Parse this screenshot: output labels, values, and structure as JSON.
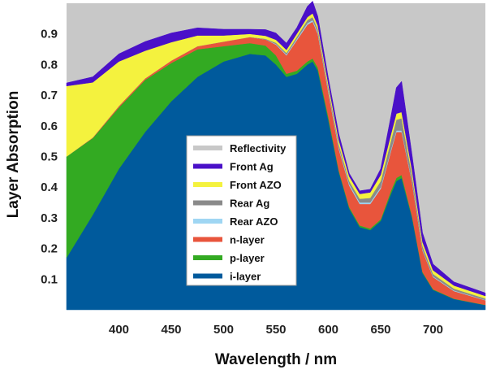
{
  "chart_data": {
    "type": "area",
    "stacked": true,
    "title": "",
    "xlabel": "Wavelength / nm",
    "ylabel": "Layer Absorption",
    "xlim": [
      350,
      750
    ],
    "ylim": [
      0,
      1
    ],
    "xticks": [
      400,
      450,
      500,
      550,
      600,
      650,
      700
    ],
    "yticks": [
      0.1,
      0.2,
      0.3,
      0.4,
      0.5,
      0.6,
      0.7,
      0.8,
      0.9
    ],
    "grid": false,
    "legend_position": "center",
    "background_color": "#c8c8c8",
    "x": [
      350,
      375,
      400,
      425,
      450,
      475,
      500,
      525,
      540,
      550,
      560,
      570,
      580,
      585,
      590,
      600,
      610,
      620,
      630,
      640,
      650,
      660,
      665,
      670,
      680,
      690,
      700,
      720,
      750
    ],
    "series": [
      {
        "name": "i-layer",
        "color": "#005a9c",
        "values": [
          0.17,
          0.31,
          0.46,
          0.58,
          0.68,
          0.76,
          0.81,
          0.835,
          0.83,
          0.8,
          0.76,
          0.77,
          0.8,
          0.81,
          0.78,
          0.62,
          0.45,
          0.33,
          0.27,
          0.26,
          0.29,
          0.38,
          0.42,
          0.43,
          0.3,
          0.12,
          0.065,
          0.035,
          0.015
        ]
      },
      {
        "name": "p-layer",
        "color": "#33aa22",
        "values": [
          0.33,
          0.25,
          0.2,
          0.17,
          0.125,
          0.09,
          0.05,
          0.035,
          0.032,
          0.03,
          0.01,
          0.01,
          0.01,
          0.01,
          0.01,
          0.01,
          0.005,
          0.005,
          0.005,
          0.005,
          0.005,
          0.01,
          0.01,
          0.01,
          0.005,
          0.003,
          0.002,
          0.001,
          0.001
        ]
      },
      {
        "name": "n-layer",
        "color": "#e8553c",
        "values": [
          0.0,
          0.002,
          0.005,
          0.005,
          0.008,
          0.01,
          0.015,
          0.02,
          0.02,
          0.035,
          0.06,
          0.1,
          0.12,
          0.12,
          0.11,
          0.08,
          0.07,
          0.07,
          0.07,
          0.08,
          0.1,
          0.13,
          0.15,
          0.14,
          0.11,
          0.07,
          0.04,
          0.025,
          0.015
        ]
      },
      {
        "name": "Rear AZO",
        "color": "#9fd6f3",
        "values": [
          0.0,
          0.0,
          0.0,
          0.0,
          0.0,
          0.0,
          0.0,
          0.0,
          0.0,
          0.002,
          0.003,
          0.004,
          0.005,
          0.005,
          0.005,
          0.005,
          0.005,
          0.005,
          0.005,
          0.005,
          0.005,
          0.005,
          0.005,
          0.005,
          0.004,
          0.003,
          0.002,
          0.002,
          0.001
        ]
      },
      {
        "name": "Rear Ag",
        "color": "#8a8a8a",
        "values": [
          0.0,
          0.0,
          0.0,
          0.0,
          0.0,
          0.0,
          0.0,
          0.0,
          0.002,
          0.004,
          0.005,
          0.007,
          0.01,
          0.01,
          0.01,
          0.01,
          0.01,
          0.01,
          0.012,
          0.015,
          0.02,
          0.03,
          0.035,
          0.04,
          0.02,
          0.012,
          0.008,
          0.006,
          0.005
        ]
      },
      {
        "name": "Front AZO",
        "color": "#f4f23e",
        "values": [
          0.23,
          0.18,
          0.145,
          0.09,
          0.06,
          0.035,
          0.02,
          0.01,
          0.01,
          0.01,
          0.01,
          0.01,
          0.01,
          0.012,
          0.012,
          0.012,
          0.014,
          0.015,
          0.016,
          0.018,
          0.02,
          0.02,
          0.02,
          0.02,
          0.016,
          0.013,
          0.012,
          0.01,
          0.008
        ]
      },
      {
        "name": "Front Ag",
        "color": "#4a10c8",
        "values": [
          0.01,
          0.018,
          0.025,
          0.03,
          0.03,
          0.025,
          0.02,
          0.015,
          0.02,
          0.022,
          0.022,
          0.02,
          0.035,
          0.04,
          0.03,
          0.02,
          0.02,
          0.01,
          0.01,
          0.01,
          0.02,
          0.06,
          0.085,
          0.1,
          0.05,
          0.03,
          0.02,
          0.012,
          0.01
        ]
      }
    ],
    "legend": [
      {
        "label": "Reflectivity",
        "color": "#c8c8c8"
      },
      {
        "label": "Front Ag",
        "color": "#4a10c8"
      },
      {
        "label": "Front AZO",
        "color": "#f4f23e"
      },
      {
        "label": "Rear Ag",
        "color": "#8a8a8a"
      },
      {
        "label": "Rear AZO",
        "color": "#9fd6f3"
      },
      {
        "label": "n-layer",
        "color": "#e8553c"
      },
      {
        "label": "p-layer",
        "color": "#33aa22"
      },
      {
        "label": "i-layer",
        "color": "#005a9c"
      }
    ]
  }
}
